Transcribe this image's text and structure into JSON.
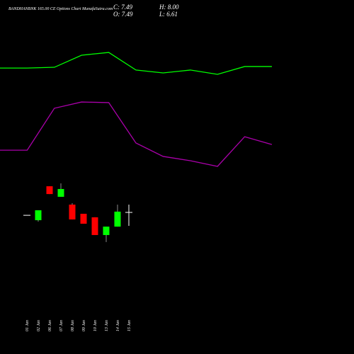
{
  "chart_data": [
    {
      "type": "candlestick",
      "title": "BANDHANBNK 165.00 CE Options Chart MunafaSutra.com",
      "summary": {
        "close_label": "C: 7.49",
        "high_label": "H: 8.00",
        "open_label": "O: 7.49",
        "low_label": "L: 6.61"
      },
      "categories": [
        "01 Jan",
        "02 Jan",
        "06 Jan",
        "07 Jan",
        "08 Jan",
        "09 Jan",
        "10 Jan",
        "13 Jan",
        "14 Jan",
        "15 Jan"
      ],
      "open": [
        7.3,
        6.98,
        9.2,
        8.51,
        8.0,
        7.4,
        7.17,
        6.01,
        6.56,
        7.49
      ],
      "high": [
        7.3,
        7.63,
        9.2,
        9.39,
        8.09,
        7.4,
        7.17,
        6.56,
        8.0,
        8.0
      ],
      "low": [
        7.3,
        6.89,
        8.69,
        8.51,
        7.03,
        6.75,
        6.01,
        5.55,
        6.56,
        6.61
      ],
      "close": [
        7.3,
        7.63,
        8.69,
        9.02,
        7.03,
        6.75,
        6.01,
        6.56,
        7.54,
        7.49
      ],
      "up_color": "#00ff00",
      "down_color": "#ff0000",
      "flat_color": "#ffffff",
      "ylim": [
        -1.77,
        21.38
      ]
    },
    {
      "type": "line",
      "x": [
        0,
        1,
        2,
        3,
        4,
        5,
        6,
        7,
        8,
        9,
        10
      ],
      "xlim": [
        0,
        10
      ],
      "series": [
        {
          "color": "#00ff00",
          "values": [
            16.93,
            16.93,
            16.98,
            17.77,
            17.95,
            16.8,
            16.61,
            16.8,
            16.52,
            17.03,
            17.03
          ]
        },
        {
          "color": "#aa00aa",
          "values": [
            11.56,
            11.56,
            14.3,
            14.71,
            14.67,
            12.03,
            11.15,
            10.87,
            10.5,
            12.44,
            11.93
          ]
        }
      ],
      "ylim": [
        -1.77,
        21.38
      ]
    }
  ]
}
